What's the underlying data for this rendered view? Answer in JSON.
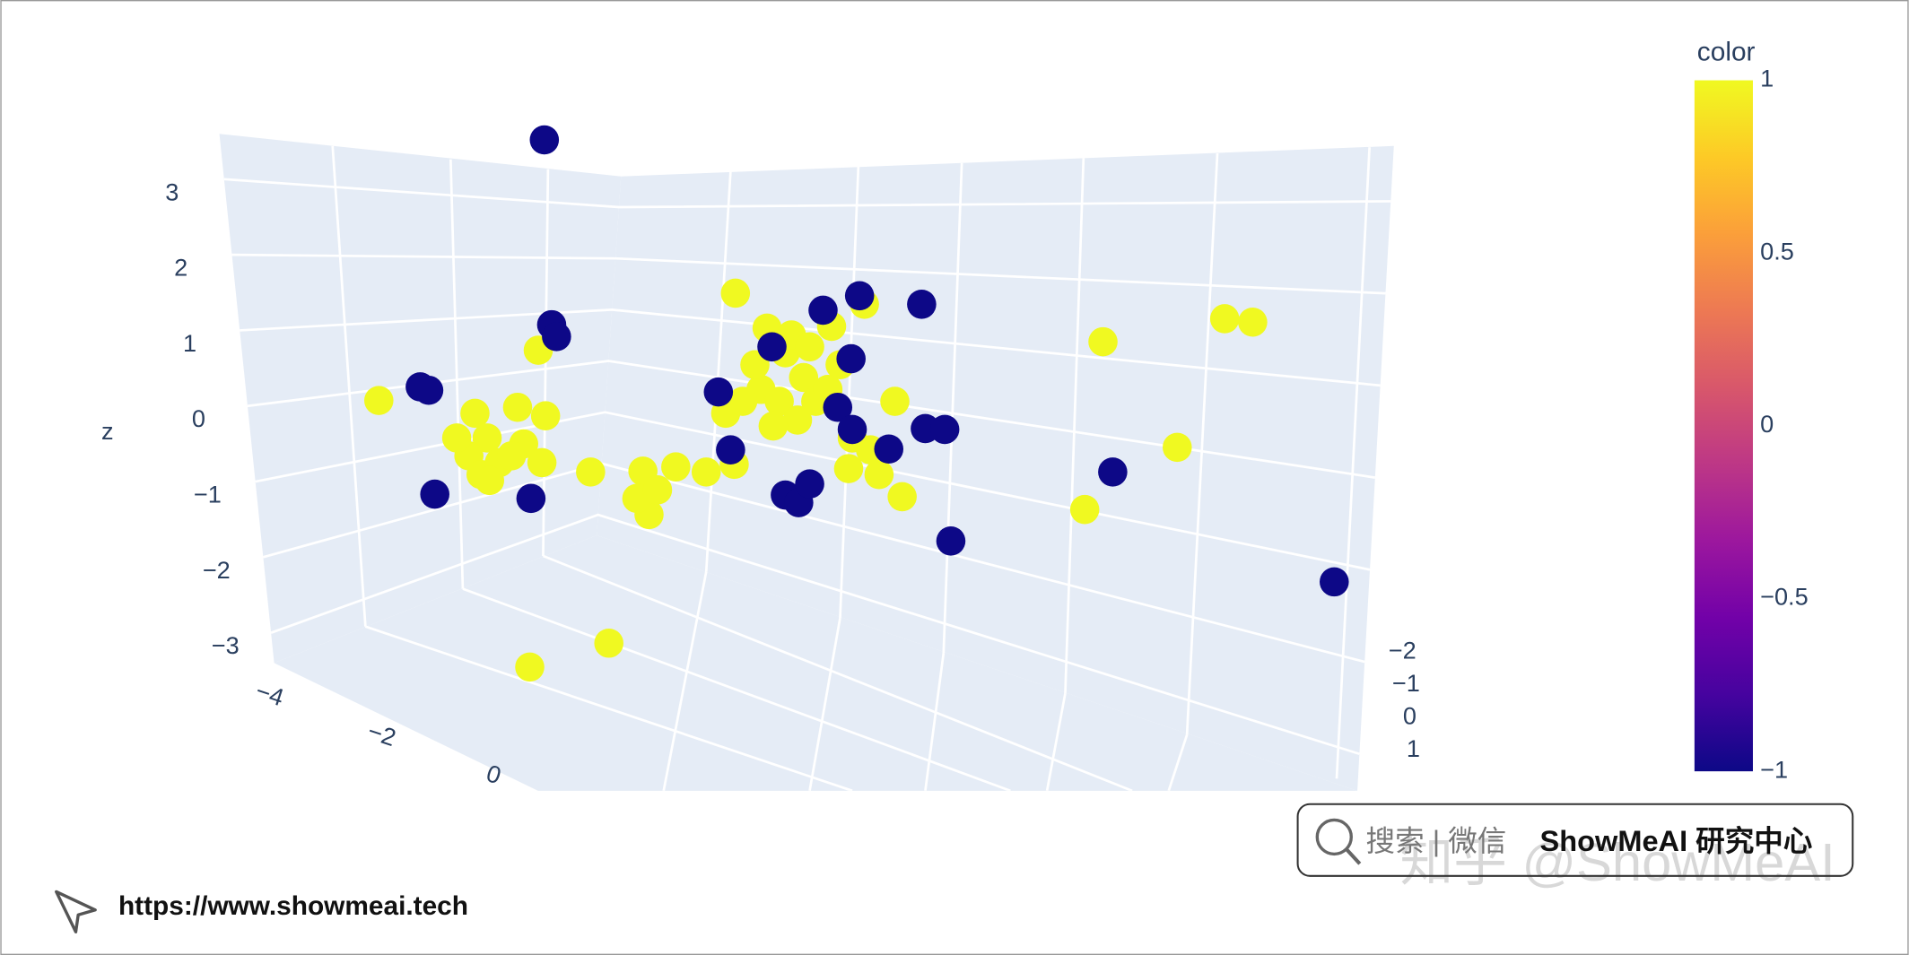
{
  "chart_data": {
    "type": "scatter3d",
    "z_title": "z",
    "x": [
      -3.29,
      -1.98,
      -0.36,
      2.66,
      3.66,
      3.89,
      3.27,
      2.51,
      -2.05,
      -1.4,
      -1.55,
      -1.12,
      -0.85,
      -0.6,
      -0.37,
      -1.07,
      -1.17,
      -1.0,
      1.01,
      0.7,
      0.43,
      -0.44,
      0.95,
      0.82,
      0.57,
      -2.5,
      -2.4,
      -2.55,
      -2.45,
      -2.3,
      -2.15,
      -1.92,
      -2.1,
      -1.95,
      -2.2,
      -2.38,
      -2.65,
      -0.1,
      0.05,
      0.2,
      -0.15,
      0,
      0.15,
      -0.05,
      0.3,
      0.5,
      -0.2,
      0.4,
      -0.3,
      0.6,
      0.75,
      0.1,
      0.25,
      -1.93,
      -1.87,
      -1.83,
      -2.95,
      -2.88,
      -2.83,
      -2.04,
      -0.5,
      -0.06,
      0.59,
      0.36,
      0.66,
      1.17,
      0.48,
      0.6,
      -0.4,
      0.9,
      1.2,
      1.36,
      0.05,
      0.16,
      0.25,
      1.41,
      2.74,
      4.56
    ],
    "y": [
      0,
      0,
      0,
      0,
      0,
      0,
      0,
      0,
      0,
      0,
      0,
      0,
      0,
      0,
      0,
      0,
      0,
      0,
      0,
      0,
      0,
      0,
      0,
      0,
      0,
      0,
      0,
      0,
      0,
      0,
      0,
      0,
      0,
      0,
      0,
      0,
      0,
      0,
      0,
      0,
      0,
      0,
      0,
      0,
      0,
      0,
      0,
      0,
      0,
      0,
      0,
      0,
      0,
      0,
      0,
      0,
      0,
      0,
      0,
      0,
      0,
      0,
      0,
      0,
      0,
      0,
      0,
      0,
      0,
      0,
      0,
      0,
      0,
      0,
      0,
      0,
      0,
      0
    ],
    "z": [
      0.44,
      1.03,
      1.7,
      1.13,
      1.4,
      1.36,
      -0.11,
      -0.84,
      -2.69,
      -2.41,
      -0.4,
      -0.39,
      -0.34,
      -0.4,
      -0.31,
      -0.9,
      -0.71,
      -0.61,
      -0.69,
      1.57,
      1.31,
      0.29,
      0.43,
      -0.43,
      -0.36,
      0.29,
      0,
      -0.21,
      -0.43,
      -0.29,
      0.36,
      0.26,
      -0.07,
      -0.29,
      -0.21,
      -0.5,
      0,
      1.29,
      1.0,
      0.71,
      0.57,
      0.43,
      0.21,
      0.14,
      0.43,
      0.86,
      0.86,
      0.57,
      0.43,
      0,
      -0.14,
      1.21,
      1.07,
      3.5,
      1.33,
      1.19,
      0.6,
      0.56,
      -0.66,
      -0.71,
      0.54,
      1.07,
      0.93,
      1.5,
      1.67,
      1.57,
      0.36,
      0.1,
      -0.14,
      -0.13,
      0.11,
      0.1,
      -0.67,
      -0.76,
      -0.54,
      -1.21,
      -0.4,
      -1.69
    ],
    "marker_color": [
      1,
      1,
      1,
      1,
      1,
      1,
      1,
      1,
      1,
      1,
      1,
      1,
      1,
      1,
      1,
      1,
      1,
      1,
      1,
      1,
      1,
      1,
      1,
      1,
      1,
      1,
      1,
      1,
      1,
      1,
      1,
      1,
      1,
      1,
      1,
      1,
      1,
      1,
      1,
      1,
      1,
      1,
      1,
      1,
      1,
      1,
      1,
      1,
      1,
      1,
      1,
      1,
      1,
      -1,
      -1,
      -1,
      -1,
      -1,
      -1,
      -1,
      -1,
      -1,
      -1,
      -1,
      -1,
      -1,
      -1,
      -1,
      -1,
      -1,
      -1,
      -1,
      -1,
      -1,
      -1,
      -1,
      -1,
      -1
    ],
    "colorscale": [
      "#0d0887",
      "#46039f",
      "#7201a8",
      "#9c179e",
      "#bd3786",
      "#d8576b",
      "#ed7953",
      "#fb9f3a",
      "#fdca26",
      "#f0f921"
    ],
    "colorbar_title": "color",
    "clim": [
      -1,
      1
    ],
    "cticks": [
      {
        "value": -1,
        "label": "−1"
      },
      {
        "value": -0.5,
        "label": "−0.5"
      },
      0,
      0.5,
      1
    ],
    "xticks": [
      {
        "value": -4,
        "label": "−4"
      },
      {
        "value": -2,
        "label": "−2"
      },
      0
    ],
    "yticks": [
      {
        "value": -2,
        "label": "−2"
      },
      {
        "value": -1,
        "label": "−1"
      },
      0,
      1
    ],
    "zlim": [
      -3.4,
      3.6
    ],
    "zticks": [
      {
        "value": -3,
        "label": "−3"
      },
      {
        "value": -2,
        "label": "−2"
      },
      {
        "value": -1,
        "label": "−1"
      },
      0,
      1,
      2,
      3
    ]
  },
  "watermark": {
    "search": "搜索 | 微信",
    "brand": "ShowMeAI 研究中心",
    "zhihu": "知乎 @ShowMeAI",
    "url": "https://www.showmeai.tech"
  }
}
